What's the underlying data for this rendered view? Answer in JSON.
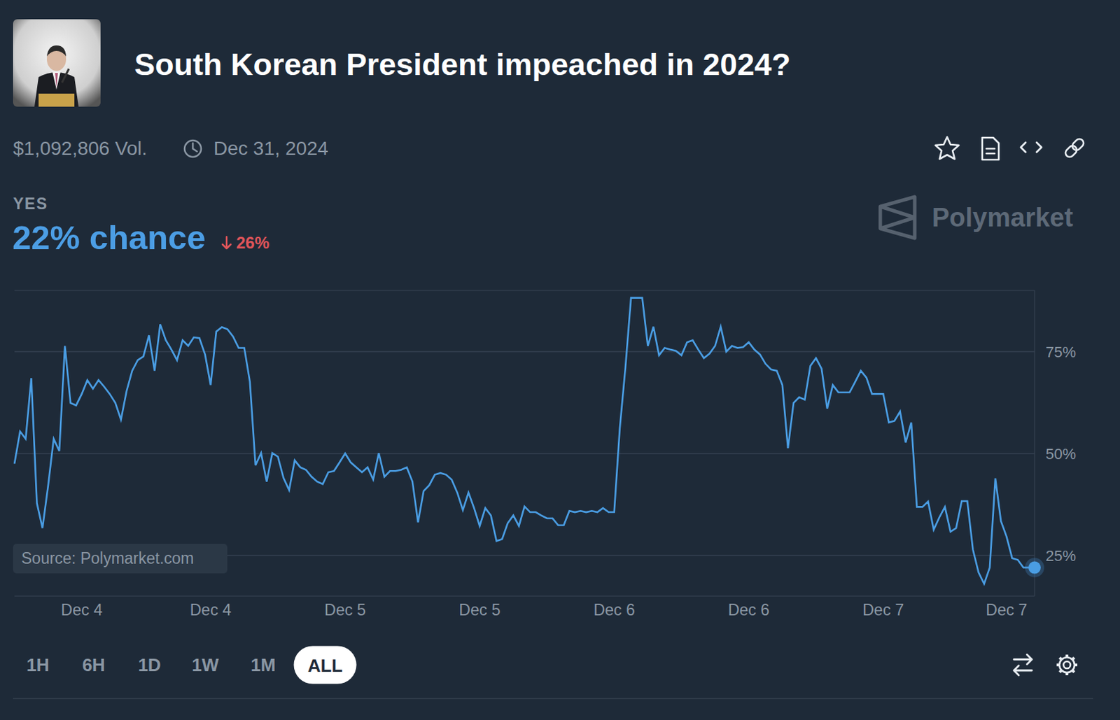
{
  "chart_data": {
    "type": "line",
    "title": "South Korean President impeached in 2024?",
    "categories": [
      null,
      null,
      null,
      null,
      null,
      null,
      null,
      null,
      null,
      null,
      null,
      null,
      "Dec 4",
      null,
      null,
      null,
      null,
      null,
      null,
      null,
      null,
      null,
      null,
      null,
      null,
      null,
      null,
      null,
      null,
      null,
      null,
      null,
      null,
      null,
      null,
      "Dec 4",
      null,
      null,
      null,
      null,
      null,
      null,
      null,
      null,
      null,
      null,
      null,
      null,
      null,
      null,
      null,
      null,
      null,
      null,
      null,
      null,
      null,
      null,
      null,
      "Dec 5",
      null,
      null,
      null,
      null,
      null,
      null,
      null,
      null,
      null,
      null,
      null,
      null,
      null,
      null,
      null,
      null,
      null,
      null,
      null,
      null,
      null,
      null,
      null,
      "Dec 5",
      null,
      null,
      null,
      null,
      null,
      null,
      null,
      null,
      null,
      null,
      null,
      null,
      null,
      null,
      null,
      null,
      null,
      null,
      null,
      null,
      null,
      null,
      null,
      "Dec 6",
      null,
      null,
      null,
      null,
      null,
      null,
      null,
      null,
      null,
      null,
      null,
      null,
      null,
      null,
      null,
      null,
      null,
      null,
      null,
      null,
      null,
      null,
      null,
      "Dec 6",
      null,
      null,
      null,
      null,
      null,
      null,
      null,
      null,
      null,
      null,
      null,
      null,
      null,
      null,
      null,
      null,
      null,
      null,
      null,
      null,
      null,
      null,
      null,
      "Dec 7",
      null,
      null,
      null,
      null,
      null,
      null,
      null,
      null,
      null,
      null,
      null,
      null,
      null,
      null,
      null,
      null,
      null,
      null,
      null,
      null,
      null,
      "Dec 7",
      null,
      null,
      null,
      null,
      null
    ],
    "values": [
      47.5,
      55.4,
      53.6,
      68.5,
      37.8,
      31.7,
      42,
      53.6,
      50.6,
      76.4,
      62.4,
      61.8,
      64.6,
      68,
      65.9,
      68,
      66.4,
      64.6,
      62.4,
      58.3,
      65.3,
      70.3,
      72.9,
      73.8,
      79,
      70.3,
      81.7,
      77.8,
      75.5,
      72.9,
      77.8,
      76.4,
      78.5,
      78.3,
      74.3,
      66.8,
      79.9,
      81,
      80.5,
      78.7,
      75.9,
      75.9,
      67.6,
      47.1,
      50.1,
      43.1,
      50.1,
      49.2,
      44,
      41,
      48.3,
      46.6,
      46,
      44.3,
      43.1,
      42.5,
      45.4,
      45.7,
      47.8,
      50,
      47.8,
      46.6,
      45.4,
      46.6,
      43.6,
      50.1,
      44.3,
      45.7,
      45.7,
      46,
      46.6,
      43.1,
      33.1,
      40.8,
      42.2,
      44.8,
      45.2,
      44.8,
      43.6,
      40.4,
      36.1,
      40.4,
      36.6,
      32.2,
      36.6,
      34.8,
      28.5,
      29,
      32.9,
      34.8,
      32.2,
      37,
      35.6,
      35.6,
      34.8,
      34.1,
      34.1,
      32.4,
      32.4,
      35.9,
      35.6,
      35.9,
      35.6,
      35.9,
      35.6,
      36.6,
      35.6,
      35.6,
      56.2,
      71.1,
      88.2,
      88.2,
      88.2,
      76.4,
      81.1,
      74.1,
      75.9,
      75.5,
      75.2,
      74.1,
      77.3,
      77.8,
      75.5,
      73.4,
      74.5,
      76.4,
      81.1,
      75,
      76.4,
      75.9,
      76.1,
      77.3,
      75.5,
      74.3,
      72,
      70.6,
      70.3,
      66.8,
      51.3,
      62.4,
      63.8,
      63.2,
      71.5,
      73.4,
      70.8,
      61,
      66.8,
      65,
      65,
      65,
      67.6,
      70.3,
      68.6,
      64.6,
      64.6,
      64.6,
      57.6,
      58,
      60.3,
      52.7,
      57.6,
      36.9,
      36.9,
      38.2,
      31.3,
      34.3,
      36.9,
      30.8,
      31.7,
      38.3,
      38.3,
      26.4,
      20.8,
      18,
      22,
      43.9,
      33.4,
      29.6,
      24.3,
      23.9,
      22,
      22,
      22
    ],
    "color": "#4a9de3",
    "ylim": [
      15,
      90
    ],
    "yticks": [
      {
        "value": 25,
        "label": "25%"
      },
      {
        "value": 50,
        "label": "50%"
      },
      {
        "value": 75,
        "label": "75%"
      }
    ],
    "grid": true
  },
  "header": {
    "volume": "$1,092,806 Vol.",
    "end_date": "Dec 31, 2024",
    "outcome": "YES",
    "chance": "22% chance",
    "change": "26%",
    "brand": "Polymarket",
    "source": "Source: Polymarket.com"
  },
  "controls": [
    "1H",
    "6H",
    "1D",
    "1W",
    "1M",
    "ALL"
  ],
  "selected_control": "ALL"
}
